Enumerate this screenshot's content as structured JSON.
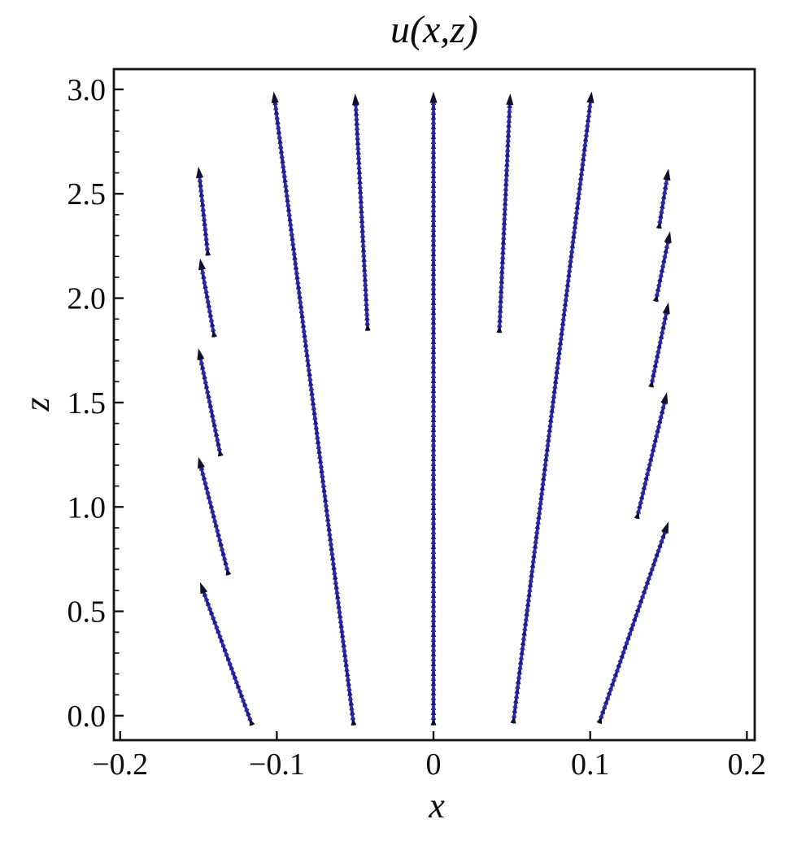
{
  "figure": {
    "title": "u(x,z)",
    "xlabel": "x",
    "ylabel": "z"
  },
  "chart_data": {
    "type": "quiver",
    "title": "u(x,z)",
    "xlabel": "x",
    "ylabel": "z",
    "xlim": [
      -0.204,
      0.205
    ],
    "ylim": [
      -0.117,
      3.097
    ],
    "grid": false,
    "legend": false,
    "frame": true,
    "arrow_color": "#1c1c90",
    "arrow_color_alt": "#2a2aa4",
    "arrowhead_color": "#10102a",
    "frame_color": "#151515",
    "x_ticks": {
      "values": [
        -0.2,
        -0.1,
        0,
        0.1,
        0.2
      ],
      "labels": [
        "−0.2",
        "−0.1",
        "0",
        "0.1",
        "0.2"
      ]
    },
    "y_ticks": {
      "values": [
        0,
        0.5,
        1.0,
        1.5,
        2.0,
        2.5,
        3.0
      ],
      "labels": [
        "0.0",
        "0.5",
        "1.0",
        "1.5",
        "2.0",
        "2.5",
        "3.0"
      ],
      "minor_step": 0.1
    },
    "vectors": [
      {
        "group": "long-left",
        "tail": [
          -0.051,
          -0.04
        ],
        "tip": [
          -0.102,
          2.99
        ]
      },
      {
        "group": "medium-left",
        "tail": [
          -0.042,
          1.85
        ],
        "tip": [
          -0.05,
          2.98
        ]
      },
      {
        "group": "center",
        "tail": [
          0.0,
          -0.04
        ],
        "tip": [
          0.0,
          2.99
        ]
      },
      {
        "group": "medium-right",
        "tail": [
          0.042,
          1.84
        ],
        "tip": [
          0.049,
          2.98
        ]
      },
      {
        "group": "long-right",
        "tail": [
          0.051,
          -0.03
        ],
        "tip": [
          0.101,
          2.99
        ]
      },
      {
        "group": "left-column-1",
        "tail": [
          -0.144,
          2.21
        ],
        "tip": [
          -0.15,
          2.63
        ]
      },
      {
        "group": "left-column-2",
        "tail": [
          -0.14,
          1.82
        ],
        "tip": [
          -0.149,
          2.19
        ]
      },
      {
        "group": "left-column-3",
        "tail": [
          -0.136,
          1.25
        ],
        "tip": [
          -0.15,
          1.76
        ]
      },
      {
        "group": "left-column-4",
        "tail": [
          -0.131,
          0.68
        ],
        "tip": [
          -0.15,
          1.24
        ]
      },
      {
        "group": "left-column-5",
        "tail": [
          -0.116,
          -0.04
        ],
        "tip": [
          -0.149,
          0.64
        ]
      },
      {
        "group": "right-column-1",
        "tail": [
          0.144,
          2.34
        ],
        "tip": [
          0.15,
          2.62
        ]
      },
      {
        "group": "right-column-2",
        "tail": [
          0.142,
          1.99
        ],
        "tip": [
          0.151,
          2.32
        ]
      },
      {
        "group": "right-column-3",
        "tail": [
          0.139,
          1.58
        ],
        "tip": [
          0.15,
          1.98
        ]
      },
      {
        "group": "right-column-4",
        "tail": [
          0.13,
          0.95
        ],
        "tip": [
          0.149,
          1.55
        ]
      },
      {
        "group": "right-column-5",
        "tail": [
          0.106,
          -0.03
        ],
        "tip": [
          0.15,
          0.93
        ]
      }
    ]
  }
}
